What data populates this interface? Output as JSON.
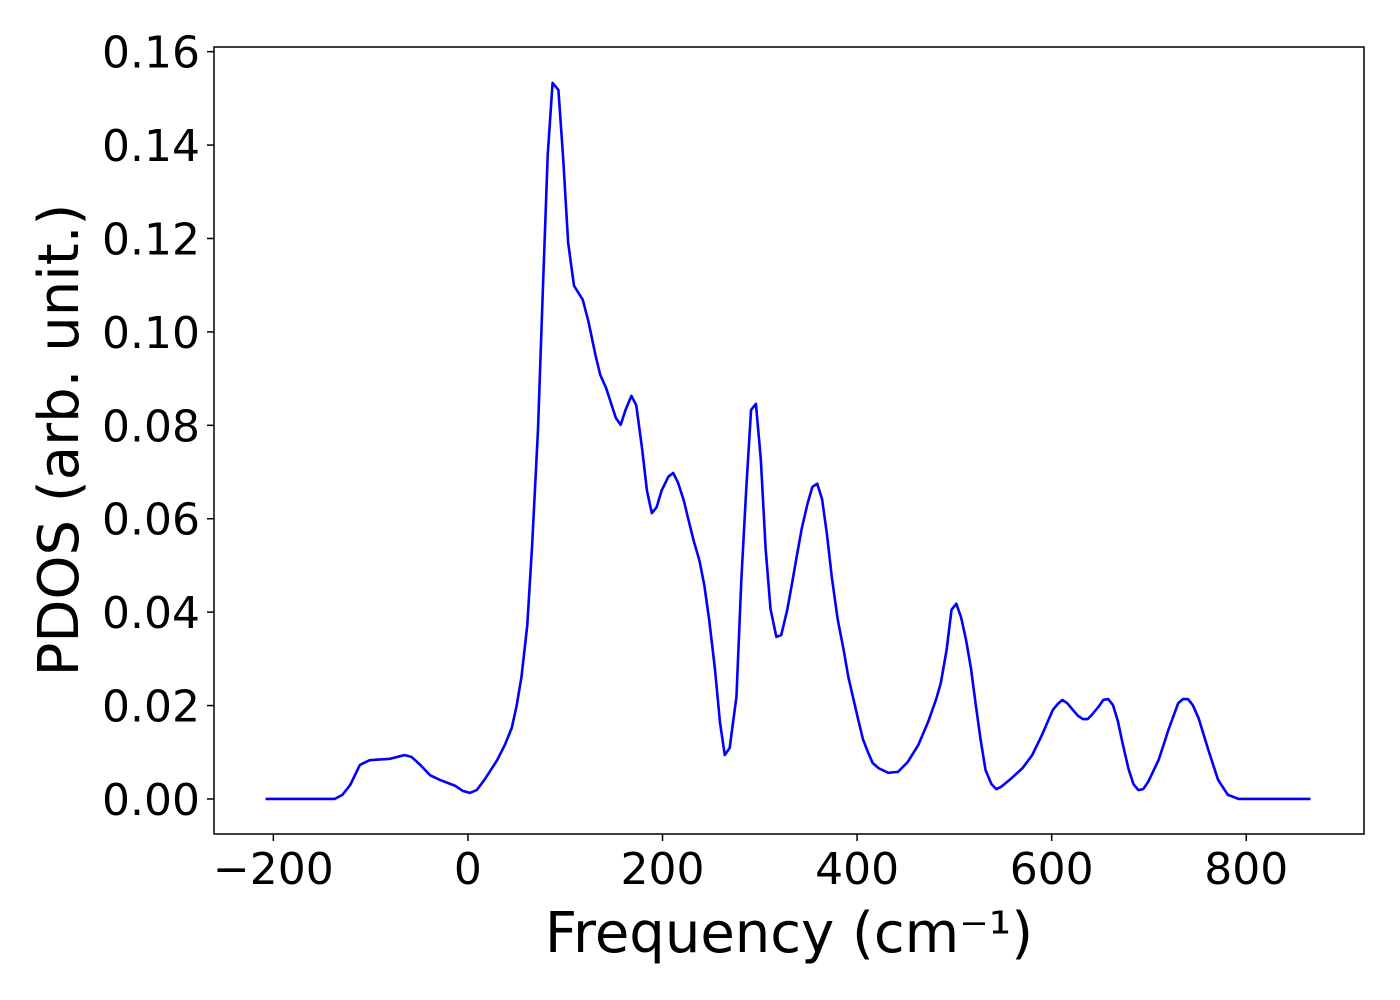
{
  "chart_data": {
    "type": "line",
    "xlabel": "Frequency (cm⁻¹)",
    "ylabel": "PDOS (arb. unit.)",
    "color": "#0000ff",
    "x": [
      -208,
      -137,
      -129,
      -121,
      -111,
      -101,
      -80,
      -65,
      -58,
      -49,
      -39,
      -29,
      -13,
      -5,
      2,
      9,
      17,
      30,
      38,
      45,
      50,
      55,
      61,
      66,
      72,
      77,
      82,
      87,
      93,
      98,
      103,
      109,
      118,
      124,
      131,
      136,
      142,
      147,
      152,
      157,
      162,
      168,
      173,
      179,
      184,
      189,
      194,
      199,
      206,
      211,
      216,
      222,
      227,
      232,
      238,
      243,
      248,
      254,
      259,
      264,
      269,
      276,
      281,
      286,
      291,
      296,
      301,
      306,
      311,
      317,
      322,
      328,
      333,
      338,
      343,
      349,
      354,
      359,
      364,
      369,
      374,
      380,
      386,
      391,
      401,
      406,
      411,
      416,
      422,
      432,
      442,
      452,
      463,
      473,
      481,
      486,
      492,
      497,
      502,
      507,
      512,
      517,
      522,
      527,
      532,
      538,
      543,
      548,
      559,
      570,
      580,
      590,
      601,
      606,
      611,
      616,
      622,
      627,
      632,
      637,
      642,
      648,
      653,
      658,
      663,
      668,
      673,
      679,
      684,
      689,
      694,
      699,
      710,
      720,
      730,
      735,
      740,
      745,
      751,
      761,
      771,
      781,
      792,
      866
    ],
    "values": [
      0,
      0,
      0.0009,
      0.003,
      0.0073,
      0.0083,
      0.0086,
      0.0094,
      0.009,
      0.0073,
      0.0051,
      0.0041,
      0.0028,
      0.0017,
      0.0013,
      0.0019,
      0.0041,
      0.0083,
      0.0116,
      0.0152,
      0.0199,
      0.0261,
      0.0372,
      0.0544,
      0.079,
      0.109,
      0.1379,
      0.1533,
      0.1518,
      0.1368,
      0.1191,
      0.1099,
      0.1069,
      0.1021,
      0.0951,
      0.0908,
      0.088,
      0.0848,
      0.0816,
      0.0801,
      0.0833,
      0.0863,
      0.0843,
      0.075,
      0.066,
      0.0612,
      0.0625,
      0.066,
      0.069,
      0.0698,
      0.0677,
      0.0638,
      0.0595,
      0.0553,
      0.051,
      0.0457,
      0.0383,
      0.0276,
      0.0165,
      0.0094,
      0.0109,
      0.0219,
      0.0469,
      0.0662,
      0.0833,
      0.0846,
      0.0728,
      0.0535,
      0.0407,
      0.0347,
      0.0351,
      0.0403,
      0.046,
      0.052,
      0.0578,
      0.0632,
      0.0668,
      0.0675,
      0.0642,
      0.0567,
      0.0475,
      0.0385,
      0.0321,
      0.0261,
      0.0171,
      0.0128,
      0.0101,
      0.0077,
      0.0066,
      0.0056,
      0.0058,
      0.0079,
      0.0116,
      0.0165,
      0.0212,
      0.0248,
      0.0319,
      0.0405,
      0.0418,
      0.0388,
      0.034,
      0.028,
      0.0201,
      0.0126,
      0.0062,
      0.0032,
      0.0021,
      0.0026,
      0.0045,
      0.0066,
      0.0094,
      0.0137,
      0.019,
      0.0203,
      0.0212,
      0.0205,
      0.019,
      0.0178,
      0.0171,
      0.0171,
      0.0182,
      0.0197,
      0.0212,
      0.0214,
      0.0201,
      0.0167,
      0.0118,
      0.0064,
      0.0032,
      0.0019,
      0.0021,
      0.0036,
      0.0084,
      0.0148,
      0.0205,
      0.0214,
      0.0214,
      0.0201,
      0.0173,
      0.0105,
      0.0041,
      0.0009,
      0,
      0
    ],
    "xlim": [
      -261,
      921
    ],
    "ylim": [
      -0.0075,
      0.161
    ],
    "xticks": [
      {
        "value": -200,
        "label": "−200"
      },
      0,
      200,
      400,
      600,
      800
    ],
    "yticks": [
      {
        "value": 0,
        "label": "0.00"
      },
      {
        "value": 0.02,
        "label": "0.02"
      },
      {
        "value": 0.04,
        "label": "0.04"
      },
      {
        "value": 0.06,
        "label": "0.06"
      },
      {
        "value": 0.08,
        "label": "0.08"
      },
      {
        "value": 0.1,
        "label": "0.10"
      },
      {
        "value": 0.12,
        "label": "0.12"
      },
      {
        "value": 0.14,
        "label": "0.14"
      },
      {
        "value": 0.16,
        "label": "0.16"
      }
    ]
  }
}
